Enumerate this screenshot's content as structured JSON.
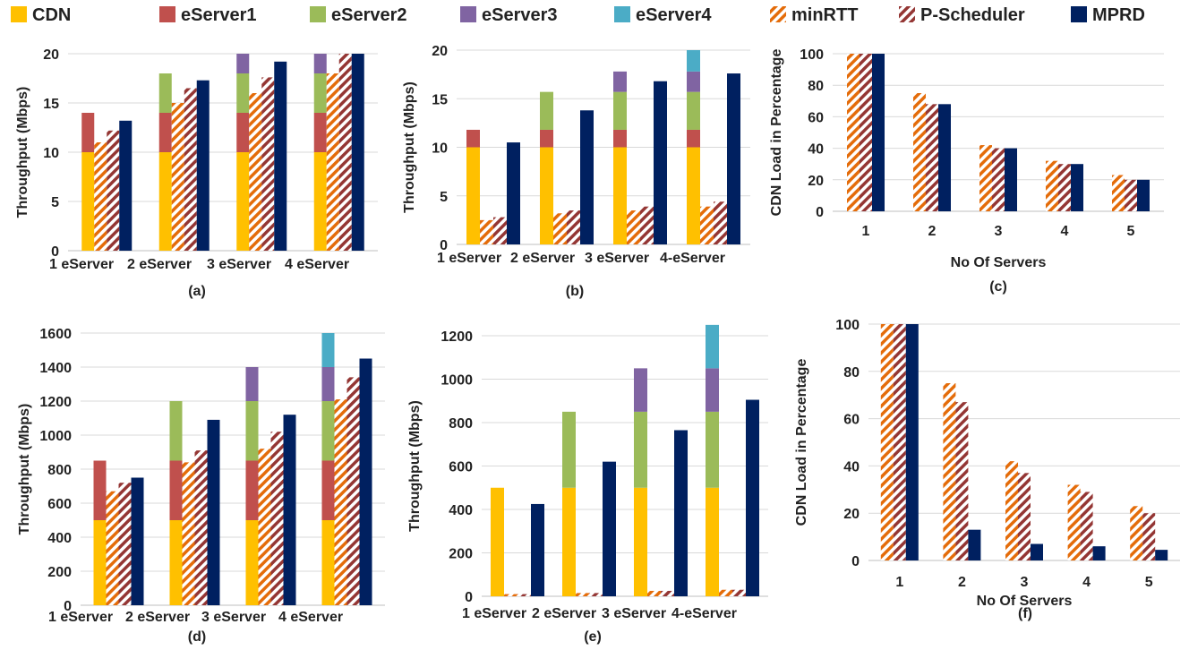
{
  "legend": [
    {
      "name": "CDN",
      "color": "#FFC000",
      "pattern": "solid"
    },
    {
      "name": "eServer1",
      "color": "#C0504D",
      "pattern": "solid"
    },
    {
      "name": "eServer2",
      "color": "#9BBB59",
      "pattern": "solid"
    },
    {
      "name": "eServer3",
      "color": "#8064A2",
      "pattern": "solid"
    },
    {
      "name": "eServer4",
      "color": "#4BACC6",
      "pattern": "solid"
    },
    {
      "name": "minRTT",
      "color": "#E46C0A",
      "pattern": "hatch"
    },
    {
      "name": "P-Scheduler",
      "color": "#943634",
      "pattern": "hatch"
    },
    {
      "name": "MPRD",
      "color": "#002060",
      "pattern": "solid"
    }
  ],
  "chart_data": [
    {
      "id": "a",
      "type": "bar",
      "label": "(a)",
      "ylabel": "Throughput (Mbps)",
      "xlabel": "",
      "ylim": [
        0,
        20
      ],
      "yticks": [
        0,
        5,
        10,
        15,
        20
      ],
      "categories": [
        "1 eServer",
        "2 eServer",
        "3 eServer",
        "4 eServer"
      ],
      "stacked_series": [
        {
          "name": "CDN",
          "values": [
            10,
            10,
            10,
            10
          ]
        },
        {
          "name": "eServer1",
          "values": [
            4,
            4,
            4,
            4
          ]
        },
        {
          "name": "eServer2",
          "values": [
            0,
            4,
            4,
            4
          ]
        },
        {
          "name": "eServer3",
          "values": [
            0,
            0,
            2,
            2
          ]
        }
      ],
      "series": [
        {
          "name": "minRTT",
          "values": [
            11,
            15,
            16,
            18
          ]
        },
        {
          "name": "P-Scheduler",
          "values": [
            12.2,
            16.5,
            17.6,
            20
          ]
        },
        {
          "name": "MPRD",
          "values": [
            13.2,
            17.3,
            19.2,
            20
          ]
        }
      ]
    },
    {
      "id": "b",
      "type": "bar",
      "label": "(b)",
      "ylabel": "Throughput (Mbps)",
      "xlabel": "",
      "ylim": [
        0,
        20
      ],
      "yticks": [
        0,
        5,
        10,
        15,
        20
      ],
      "categories": [
        "1 eServer",
        "2 eServer",
        "3 eServer",
        "4-eServer"
      ],
      "stacked_series": [
        {
          "name": "CDN",
          "values": [
            10,
            10,
            10,
            10
          ]
        },
        {
          "name": "eServer1",
          "values": [
            1.8,
            1.8,
            1.8,
            1.8
          ]
        },
        {
          "name": "eServer2",
          "values": [
            0,
            3.9,
            3.9,
            3.9
          ]
        },
        {
          "name": "eServer3",
          "values": [
            0,
            0,
            2.1,
            2.1
          ]
        },
        {
          "name": "eServer4",
          "values": [
            0,
            0,
            0,
            2.2
          ]
        }
      ],
      "series": [
        {
          "name": "minRTT",
          "values": [
            2.5,
            3.2,
            3.5,
            3.9
          ]
        },
        {
          "name": "P-Scheduler",
          "values": [
            2.8,
            3.5,
            3.9,
            4.4
          ]
        },
        {
          "name": "MPRD",
          "values": [
            10.5,
            13.8,
            16.8,
            17.6
          ]
        }
      ]
    },
    {
      "id": "c",
      "type": "bar",
      "label": "(c)",
      "ylabel": "CDN Load in Percentage",
      "xlabel": "No Of Servers",
      "ylim": [
        0,
        100
      ],
      "yticks": [
        0,
        20,
        40,
        60,
        80,
        100
      ],
      "categories": [
        "1",
        "2",
        "3",
        "4",
        "5"
      ],
      "series": [
        {
          "name": "minRTT",
          "values": [
            100,
            75,
            42,
            32,
            23
          ]
        },
        {
          "name": "P-Scheduler",
          "values": [
            100,
            68,
            40,
            30,
            20
          ]
        },
        {
          "name": "MPRD",
          "values": [
            100,
            68,
            40,
            30,
            20
          ]
        }
      ]
    },
    {
      "id": "d",
      "type": "bar",
      "label": "(d)",
      "ylabel": "Throughput (Mbps)",
      "xlabel": "",
      "ylim": [
        0,
        1600
      ],
      "yticks": [
        0,
        200,
        400,
        600,
        800,
        1000,
        1200,
        1400,
        1600
      ],
      "categories": [
        "1 eServer",
        "2 eServer",
        "3 eServer",
        "4 eServer"
      ],
      "stacked_series": [
        {
          "name": "CDN",
          "values": [
            500,
            500,
            500,
            500
          ]
        },
        {
          "name": "eServer1",
          "values": [
            350,
            350,
            350,
            350
          ]
        },
        {
          "name": "eServer2",
          "values": [
            0,
            350,
            350,
            350
          ]
        },
        {
          "name": "eServer3",
          "values": [
            0,
            0,
            200,
            200
          ]
        },
        {
          "name": "eServer4",
          "values": [
            0,
            0,
            0,
            200
          ]
        }
      ],
      "series": [
        {
          "name": "minRTT",
          "values": [
            670,
            840,
            920,
            1210
          ]
        },
        {
          "name": "P-Scheduler",
          "values": [
            720,
            910,
            1020,
            1340
          ]
        },
        {
          "name": "MPRD",
          "values": [
            750,
            1090,
            1120,
            1450
          ]
        }
      ]
    },
    {
      "id": "e",
      "type": "bar",
      "label": "(e)",
      "ylabel": "Throughput (Mbps)",
      "xlabel": "",
      "ylim": [
        0,
        1200
      ],
      "yticks": [
        0,
        200,
        400,
        600,
        800,
        1000,
        1200
      ],
      "categories": [
        "1 eServer",
        "2 eServer",
        "3 eServer",
        "4-eServer"
      ],
      "stacked_series": [
        {
          "name": "CDN",
          "values": [
            500,
            500,
            500,
            500
          ]
        },
        {
          "name": "eServer2",
          "values": [
            0,
            350,
            350,
            350
          ]
        },
        {
          "name": "eServer3",
          "values": [
            0,
            0,
            200,
            200
          ]
        },
        {
          "name": "eServer4",
          "values": [
            0,
            0,
            0,
            200
          ]
        }
      ],
      "series": [
        {
          "name": "minRTT",
          "values": [
            10,
            15,
            25,
            30
          ]
        },
        {
          "name": "P-Scheduler",
          "values": [
            10,
            15,
            25,
            30
          ]
        },
        {
          "name": "MPRD",
          "values": [
            425,
            620,
            765,
            905
          ]
        }
      ]
    },
    {
      "id": "f",
      "type": "bar",
      "label": "(f)",
      "ylabel": "CDN Load in Percentage",
      "xlabel": "No Of Servers",
      "ylim": [
        0,
        100
      ],
      "yticks": [
        0,
        20,
        40,
        60,
        80,
        100
      ],
      "categories": [
        "1",
        "2",
        "3",
        "4",
        "5"
      ],
      "series": [
        {
          "name": "minRTT",
          "values": [
            100,
            75,
            42,
            32,
            23
          ]
        },
        {
          "name": "P-Scheduler",
          "values": [
            100,
            67,
            37,
            29,
            20
          ]
        },
        {
          "name": "MPRD",
          "values": [
            100,
            13,
            7,
            6,
            4.5
          ]
        }
      ]
    }
  ]
}
